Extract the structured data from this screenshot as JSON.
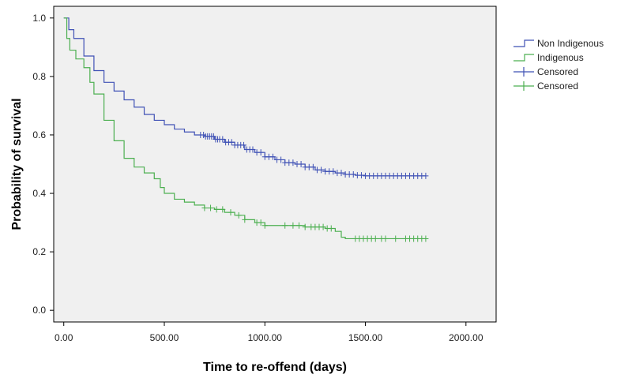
{
  "chart_data": {
    "type": "line",
    "step": true,
    "xlabel": "Time to re-offend (days)",
    "ylabel": "Probability of survival",
    "xlim": [
      -50,
      2150
    ],
    "ylim": [
      -0.04,
      1.04
    ],
    "xticks": [
      0,
      500,
      1000,
      1500,
      2000
    ],
    "xtick_labels": [
      "0.00",
      "500.00",
      "1000.00",
      "1500.00",
      "2000.00"
    ],
    "yticks": [
      0.0,
      0.2,
      0.4,
      0.6,
      0.8,
      1.0
    ],
    "ytick_labels": [
      "0.0",
      "0.2",
      "0.4",
      "0.6",
      "0.8",
      "1.0"
    ],
    "plot_background": "#f0f0f0",
    "grid": false,
    "legend_position": "right",
    "legend": [
      {
        "label": "Non Indigenous",
        "symbol": "step",
        "color": "#3f51b5"
      },
      {
        "label": "Indigenous",
        "symbol": "step",
        "color": "#4caf50"
      },
      {
        "label": "Censored",
        "symbol": "plus",
        "color": "#3f51b5"
      },
      {
        "label": "Censored",
        "symbol": "plus",
        "color": "#4caf50"
      }
    ],
    "series": [
      {
        "name": "Non Indigenous",
        "color": "#3f51b5",
        "x": [
          0,
          25,
          50,
          100,
          150,
          200,
          250,
          300,
          350,
          400,
          450,
          500,
          550,
          600,
          650,
          700,
          750,
          800,
          850,
          900,
          950,
          1000,
          1050,
          1100,
          1150,
          1200,
          1250,
          1300,
          1350,
          1400,
          1450,
          1500,
          1600,
          1700,
          1800
        ],
        "y": [
          1.0,
          0.96,
          0.93,
          0.87,
          0.82,
          0.78,
          0.75,
          0.72,
          0.695,
          0.67,
          0.65,
          0.635,
          0.62,
          0.61,
          0.6,
          0.595,
          0.585,
          0.575,
          0.565,
          0.55,
          0.54,
          0.525,
          0.515,
          0.505,
          0.5,
          0.49,
          0.48,
          0.475,
          0.47,
          0.465,
          0.462,
          0.46,
          0.46,
          0.46,
          0.46
        ],
        "censored_x": [
          680,
          695,
          705,
          715,
          725,
          735,
          745,
          755,
          765,
          775,
          790,
          805,
          820,
          835,
          850,
          865,
          880,
          895,
          910,
          925,
          940,
          960,
          980,
          1000,
          1020,
          1040,
          1060,
          1080,
          1100,
          1120,
          1140,
          1160,
          1180,
          1200,
          1220,
          1240,
          1260,
          1280,
          1300,
          1320,
          1340,
          1360,
          1380,
          1400,
          1420,
          1440,
          1460,
          1480,
          1500,
          1520,
          1540,
          1560,
          1580,
          1600,
          1620,
          1640,
          1660,
          1680,
          1700,
          1720,
          1740,
          1760,
          1780,
          1800
        ]
      },
      {
        "name": "Indigenous",
        "color": "#4caf50",
        "x": [
          0,
          15,
          30,
          60,
          100,
          130,
          150,
          200,
          250,
          300,
          350,
          400,
          450,
          480,
          500,
          550,
          600,
          650,
          700,
          750,
          800,
          850,
          900,
          950,
          1000,
          1050,
          1100,
          1150,
          1200,
          1250,
          1300,
          1350,
          1380,
          1400,
          1500,
          1600,
          1700,
          1800
        ],
        "y": [
          1.0,
          0.93,
          0.89,
          0.86,
          0.83,
          0.78,
          0.74,
          0.65,
          0.58,
          0.52,
          0.49,
          0.47,
          0.45,
          0.42,
          0.4,
          0.38,
          0.37,
          0.36,
          0.35,
          0.345,
          0.335,
          0.325,
          0.31,
          0.3,
          0.29,
          0.29,
          0.29,
          0.29,
          0.285,
          0.285,
          0.28,
          0.27,
          0.25,
          0.245,
          0.245,
          0.245,
          0.245,
          0.245
        ],
        "censored_x": [
          700,
          730,
          760,
          790,
          830,
          870,
          900,
          960,
          980,
          1000,
          1100,
          1140,
          1170,
          1200,
          1230,
          1250,
          1270,
          1290,
          1310,
          1330,
          1450,
          1470,
          1490,
          1510,
          1530,
          1550,
          1580,
          1600,
          1650,
          1700,
          1720,
          1740,
          1760,
          1780,
          1800
        ]
      }
    ]
  }
}
